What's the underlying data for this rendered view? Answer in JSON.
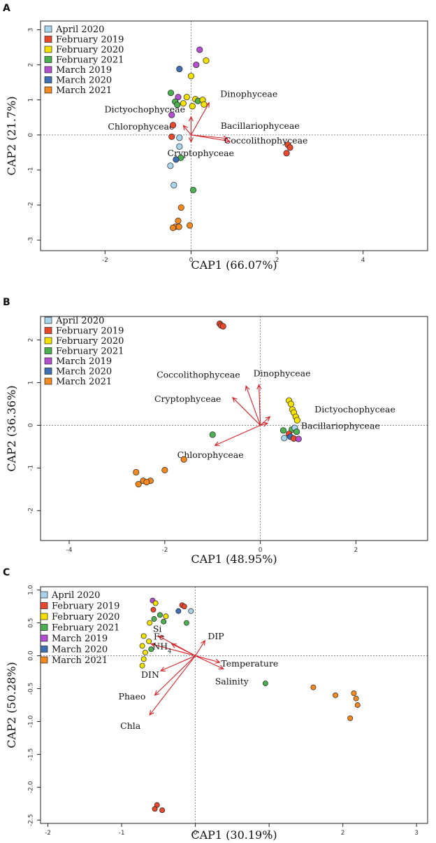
{
  "colors": {
    "April 2020": "#a9d4ee",
    "February 2019": "#e8482c",
    "February 2020": "#f5e100",
    "February 2021": "#4caf50",
    "March 2019": "#b44fcf",
    "March 2020": "#3e6fb3",
    "March 2021": "#f2891e",
    "vector": "#d62027"
  },
  "legend": [
    "April 2020",
    "February 2019",
    "February 2020",
    "February 2021",
    "March 2019",
    "March 2020",
    "March 2021"
  ],
  "chart_data": [
    {
      "type": "scatter",
      "panel": "A",
      "xlabel": "CAP1 (66.07%)",
      "ylabel": "CAP2 (21.7%)",
      "xlim": [
        -3.5,
        5.5
      ],
      "ylim": [
        -3.3,
        3.25
      ],
      "xticks": [
        -2,
        0,
        2,
        4
      ],
      "yticks": [
        -3,
        -2,
        -1,
        0,
        1,
        2,
        3
      ],
      "vectors": [
        {
          "label": "Dinophyceae",
          "x": 0.42,
          "y": 0.92
        },
        {
          "label": "Dictyochophyceae",
          "x": 0.0,
          "y": 0.52
        },
        {
          "label": "Chlorophyceae",
          "x": -0.18,
          "y": 0.27
        },
        {
          "label": "Bacillariophyceae",
          "x": 0.85,
          "y": -0.1
        },
        {
          "label": "Coccolithophyceae",
          "x": 0.9,
          "y": -0.18
        },
        {
          "label": "Cryptophyceae",
          "x": 0.0,
          "y": -0.2
        }
      ],
      "points": [
        {
          "g": "March 2019",
          "x": 0.2,
          "y": 2.43
        },
        {
          "g": "February 2020",
          "x": 0.35,
          "y": 2.12
        },
        {
          "g": "March 2019",
          "x": 0.12,
          "y": 2.0
        },
        {
          "g": "March 2020",
          "x": -0.27,
          "y": 1.88
        },
        {
          "g": "February 2020",
          "x": 0.0,
          "y": 1.68
        },
        {
          "g": "February 2021",
          "x": -0.47,
          "y": 1.2
        },
        {
          "g": "March 2019",
          "x": -0.3,
          "y": 1.08
        },
        {
          "g": "February 2020",
          "x": -0.1,
          "y": 1.08
        },
        {
          "g": "February 2020",
          "x": 0.1,
          "y": 1.02
        },
        {
          "g": "February 2021",
          "x": 0.16,
          "y": 0.97
        },
        {
          "g": "February 2020",
          "x": 0.27,
          "y": 1.0
        },
        {
          "g": "February 2021",
          "x": -0.37,
          "y": 0.95
        },
        {
          "g": "February 2021",
          "x": -0.32,
          "y": 0.86
        },
        {
          "g": "February 2020",
          "x": -0.18,
          "y": 0.9
        },
        {
          "g": "February 2020",
          "x": 0.03,
          "y": 0.82
        },
        {
          "g": "February 2020",
          "x": 0.3,
          "y": 0.87
        },
        {
          "g": "March 2019",
          "x": -0.45,
          "y": 0.57
        },
        {
          "g": "February 2019",
          "x": -0.42,
          "y": 0.28
        },
        {
          "g": "February 2019",
          "x": -0.45,
          "y": -0.05
        },
        {
          "g": "April 2020",
          "x": -0.27,
          "y": -0.08
        },
        {
          "g": "April 2020",
          "x": -0.27,
          "y": -0.33
        },
        {
          "g": "February 2019",
          "x": 2.25,
          "y": -0.28
        },
        {
          "g": "February 2019",
          "x": 2.3,
          "y": -0.36
        },
        {
          "g": "February 2019",
          "x": 2.22,
          "y": -0.52
        },
        {
          "g": "February 2021",
          "x": -0.24,
          "y": -0.65
        },
        {
          "g": "March 2020",
          "x": -0.35,
          "y": -0.7
        },
        {
          "g": "April 2020",
          "x": -0.48,
          "y": -0.88
        },
        {
          "g": "February 2021",
          "x": 0.05,
          "y": -1.57
        },
        {
          "g": "April 2020",
          "x": -0.4,
          "y": -1.43
        },
        {
          "g": "March 2021",
          "x": -0.23,
          "y": -2.07
        },
        {
          "g": "March 2021",
          "x": -0.3,
          "y": -2.45
        },
        {
          "g": "March 2021",
          "x": -0.03,
          "y": -2.58
        },
        {
          "g": "March 2021",
          "x": -0.37,
          "y": -2.62
        },
        {
          "g": "March 2021",
          "x": -0.28,
          "y": -2.62
        },
        {
          "g": "March 2021",
          "x": -0.42,
          "y": -2.65
        }
      ]
    },
    {
      "type": "scatter",
      "panel": "B",
      "xlabel": "CAP1 (48.95%)",
      "ylabel": "CAP2 (36.36%)",
      "xlim": [
        -4.6,
        3.5
      ],
      "ylim": [
        -2.7,
        2.55
      ],
      "xticks": [
        -4,
        -2,
        0,
        2
      ],
      "yticks": [
        -2,
        -1,
        0,
        1,
        2
      ],
      "vectors": [
        {
          "label": "Coccolithophyceae",
          "x": -0.3,
          "y": 0.92
        },
        {
          "label": "Dinophyceae",
          "x": -0.03,
          "y": 0.95
        },
        {
          "label": "Cryptophyceae",
          "x": -0.58,
          "y": 0.65
        },
        {
          "label": "Dictyochophyceae",
          "x": 0.2,
          "y": 0.2
        },
        {
          "label": "Bacillariophyceae",
          "x": 0.15,
          "y": 0.05
        },
        {
          "label": "Chlorophyceae",
          "x": -0.95,
          "y": -0.47
        }
      ],
      "points": [
        {
          "g": "February 2019",
          "x": -0.85,
          "y": 2.38
        },
        {
          "g": "February 2019",
          "x": -0.82,
          "y": 2.34
        },
        {
          "g": "February 2019",
          "x": -0.78,
          "y": 2.32
        },
        {
          "g": "February 2020",
          "x": 0.6,
          "y": 0.58
        },
        {
          "g": "February 2020",
          "x": 0.64,
          "y": 0.5
        },
        {
          "g": "February 2020",
          "x": 0.67,
          "y": 0.37
        },
        {
          "g": "February 2020",
          "x": 0.7,
          "y": 0.3
        },
        {
          "g": "February 2020",
          "x": 0.74,
          "y": 0.2
        },
        {
          "g": "February 2020",
          "x": 0.77,
          "y": 0.12
        },
        {
          "g": "February 2021",
          "x": 0.48,
          "y": -0.12
        },
        {
          "g": "February 2021",
          "x": 0.66,
          "y": -0.1
        },
        {
          "g": "April 2020",
          "x": 0.72,
          "y": -0.06
        },
        {
          "g": "February 2021",
          "x": 0.76,
          "y": -0.15
        },
        {
          "g": "February 2019",
          "x": 0.6,
          "y": -0.2
        },
        {
          "g": "March 2020",
          "x": 0.63,
          "y": -0.27
        },
        {
          "g": "April 2020",
          "x": 0.5,
          "y": -0.3
        },
        {
          "g": "February 2019",
          "x": 0.7,
          "y": -0.31
        },
        {
          "g": "March 2019",
          "x": 0.8,
          "y": -0.32
        },
        {
          "g": "February 2021",
          "x": -1.0,
          "y": -0.22
        },
        {
          "g": "March 2021",
          "x": -1.6,
          "y": -0.8
        },
        {
          "g": "March 2021",
          "x": -2.0,
          "y": -1.05
        },
        {
          "g": "March 2021",
          "x": -2.6,
          "y": -1.1
        },
        {
          "g": "March 2021",
          "x": -2.45,
          "y": -1.3
        },
        {
          "g": "March 2021",
          "x": -2.3,
          "y": -1.3
        },
        {
          "g": "March 2021",
          "x": -2.38,
          "y": -1.33
        },
        {
          "g": "March 2021",
          "x": -2.55,
          "y": -1.38
        }
      ]
    },
    {
      "type": "scatter",
      "panel": "C",
      "xlabel": "CAP1 (30.19%)",
      "ylabel": "CAP2 (50.28%)",
      "xlim": [
        -2.1,
        3.15
      ],
      "ylim": [
        -2.55,
        1.05
      ],
      "xticks": [
        -2,
        -1,
        0,
        1,
        2,
        3
      ],
      "yticks": [
        -2.5,
        -2.0,
        -1.5,
        -1.0,
        -0.5,
        0.0,
        0.5,
        1.0
      ],
      "vectors": [
        {
          "label": "DIP",
          "x": 0.13,
          "y": 0.23
        },
        {
          "label": "Fe",
          "x": -0.32,
          "y": 0.18
        },
        {
          "label": "Si",
          "x": -0.5,
          "y": 0.3
        },
        {
          "label": "NH4",
          "x": -0.6,
          "y": 0.18
        },
        {
          "label": "Temperature",
          "x": 0.33,
          "y": -0.1
        },
        {
          "label": "Salinity",
          "x": 0.38,
          "y": -0.2
        },
        {
          "label": "DIN",
          "x": -0.47,
          "y": -0.23
        },
        {
          "label": "Phaeo",
          "x": -0.55,
          "y": -0.6
        },
        {
          "label": "Chla",
          "x": -0.62,
          "y": -0.9
        }
      ],
      "points": [
        {
          "g": "March 2019",
          "x": -0.58,
          "y": 0.84
        },
        {
          "g": "February 2020",
          "x": -0.54,
          "y": 0.8
        },
        {
          "g": "February 2019",
          "x": -0.18,
          "y": 0.77
        },
        {
          "g": "February 2019",
          "x": -0.15,
          "y": 0.75
        },
        {
          "g": "April 2020",
          "x": -0.06,
          "y": 0.68
        },
        {
          "g": "February 2019",
          "x": -0.57,
          "y": 0.7
        },
        {
          "g": "March 2020",
          "x": -0.23,
          "y": 0.68
        },
        {
          "g": "February 2021",
          "x": -0.48,
          "y": 0.62
        },
        {
          "g": "February 2020",
          "x": -0.4,
          "y": 0.6
        },
        {
          "g": "February 2021",
          "x": -0.56,
          "y": 0.56
        },
        {
          "g": "February 2020",
          "x": -0.62,
          "y": 0.5
        },
        {
          "g": "February 2021",
          "x": -0.43,
          "y": 0.52
        },
        {
          "g": "February 2021",
          "x": -0.12,
          "y": 0.5
        },
        {
          "g": "February 2020",
          "x": -0.7,
          "y": 0.3
        },
        {
          "g": "February 2020",
          "x": -0.63,
          "y": 0.22
        },
        {
          "g": "February 2021",
          "x": -0.6,
          "y": 0.1
        },
        {
          "g": "February 2020",
          "x": -0.72,
          "y": 0.15
        },
        {
          "g": "February 2020",
          "x": -0.68,
          "y": 0.05
        },
        {
          "g": "February 2020",
          "x": -0.7,
          "y": -0.05
        },
        {
          "g": "February 2020",
          "x": -0.72,
          "y": -0.15
        },
        {
          "g": "February 2021",
          "x": 0.95,
          "y": -0.42
        },
        {
          "g": "March 2021",
          "x": 1.6,
          "y": -0.48
        },
        {
          "g": "March 2021",
          "x": 1.9,
          "y": -0.6
        },
        {
          "g": "March 2021",
          "x": 2.15,
          "y": -0.57
        },
        {
          "g": "March 2021",
          "x": 2.18,
          "y": -0.65
        },
        {
          "g": "March 2021",
          "x": 2.2,
          "y": -0.75
        },
        {
          "g": "March 2021",
          "x": 2.1,
          "y": -0.95
        },
        {
          "g": "February 2019",
          "x": -0.52,
          "y": -2.27
        },
        {
          "g": "February 2019",
          "x": -0.45,
          "y": -2.35
        },
        {
          "g": "February 2019",
          "x": -0.55,
          "y": -2.33
        }
      ]
    }
  ]
}
